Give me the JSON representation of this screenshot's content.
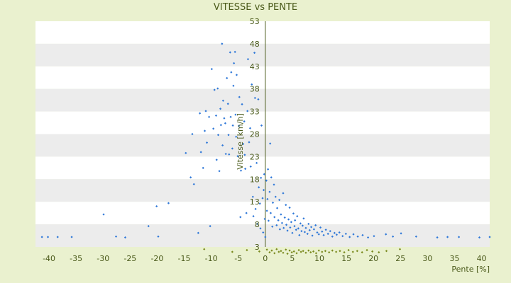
{
  "chart_data": {
    "type": "scatter",
    "title": "VITESSE vs PENTE",
    "xlabel": "Pente [%]",
    "ylabel": "Vitesse [km/h]",
    "xlim": [
      -42.5,
      41.5
    ],
    "ylim": [
      3,
      53
    ],
    "x_ticks": [
      "-40",
      "-35",
      "-30",
      "-25",
      "-20",
      "-15",
      "-10",
      "-5",
      "0",
      "5",
      "10",
      "15",
      "20",
      "25",
      "30",
      "35",
      "40"
    ],
    "y_ticks": [
      "53",
      "48",
      "43",
      "38",
      "33",
      "28",
      "23",
      "18",
      "13",
      "8",
      "3"
    ],
    "grid": true,
    "legend": "none",
    "colors": {
      "background": "#eaf1cf",
      "plot_band_light": "#ffffff",
      "plot_band_dark": "#ececec",
      "series_main": "#2f78d8",
      "series_secondary": "#7a8a1e",
      "text": "#4a5a1a"
    },
    "series": [
      {
        "points": [
          [
            -41.3,
            5.2
          ],
          [
            -40.2,
            5.2
          ],
          [
            -38.4,
            5.2
          ],
          [
            -35.8,
            5.2
          ],
          [
            -29.9,
            10.2
          ],
          [
            -27.6,
            5.3
          ],
          [
            -25.9,
            5.1
          ],
          [
            -21.6,
            7.6
          ],
          [
            -20.1,
            12.0
          ],
          [
            -19.8,
            5.3
          ],
          [
            -17.9,
            12.7
          ],
          [
            -14.7,
            23.8
          ],
          [
            -13.8,
            18.4
          ],
          [
            -13.5,
            28.0
          ],
          [
            -13.2,
            16.9
          ],
          [
            -12.4,
            6.1
          ],
          [
            -12.1,
            32.6
          ],
          [
            -11.9,
            24.0
          ],
          [
            -11.5,
            20.5
          ],
          [
            -11.2,
            28.7
          ],
          [
            -11.0,
            33.1
          ],
          [
            -10.8,
            26.1
          ],
          [
            -10.4,
            31.8
          ],
          [
            -10.2,
            7.6
          ],
          [
            -9.9,
            42.4
          ],
          [
            -9.6,
            29.2
          ],
          [
            -9.4,
            37.8
          ],
          [
            -9.1,
            32.1
          ],
          [
            -9.0,
            22.3
          ],
          [
            -8.8,
            38.1
          ],
          [
            -8.7,
            27.8
          ],
          [
            -8.5,
            19.8
          ],
          [
            -8.3,
            33.6
          ],
          [
            -8.2,
            30.0
          ],
          [
            -8.0,
            48.0
          ],
          [
            -7.9,
            25.5
          ],
          [
            -7.8,
            35.4
          ],
          [
            -7.6,
            31.5
          ],
          [
            -7.4,
            30.4
          ],
          [
            -7.3,
            23.6
          ],
          [
            -7.1,
            40.4
          ],
          [
            -6.9,
            34.7
          ],
          [
            -6.8,
            27.8
          ],
          [
            -6.7,
            23.5
          ],
          [
            -6.5,
            46.1
          ],
          [
            -6.4,
            31.8
          ],
          [
            -6.3,
            41.7
          ],
          [
            -6.1,
            24.8
          ],
          [
            -6.0,
            29.9
          ],
          [
            -5.9,
            38.7
          ],
          [
            -5.8,
            43.7
          ],
          [
            -5.6,
            46.2
          ],
          [
            -5.5,
            32.3
          ],
          [
            -5.4,
            27.4
          ],
          [
            -5.3,
            41.1
          ],
          [
            -5.1,
            23.1
          ],
          [
            -4.9,
            29.8
          ],
          [
            -4.8,
            36.2
          ],
          [
            -4.6,
            9.6
          ],
          [
            -4.5,
            19.9
          ],
          [
            -4.3,
            34.6
          ],
          [
            -4.1,
            25.8
          ],
          [
            -3.9,
            30.8
          ],
          [
            -3.8,
            23.4
          ],
          [
            -3.7,
            20.3
          ],
          [
            -3.5,
            10.5
          ],
          [
            -3.3,
            33.1
          ],
          [
            -3.2,
            44.6
          ],
          [
            -3.0,
            26.2
          ],
          [
            -2.8,
            29.3
          ],
          [
            -2.7,
            20.8
          ],
          [
            -2.5,
            39.0
          ],
          [
            -2.3,
            14.1
          ],
          [
            -2.2,
            9.8
          ],
          [
            -2.0,
            46.0
          ],
          [
            -1.9,
            36.0
          ],
          [
            -1.8,
            11.4
          ],
          [
            -1.6,
            21.6
          ],
          [
            -1.5,
            8.1
          ],
          [
            -1.3,
            35.7
          ],
          [
            -1.2,
            16.2
          ],
          [
            -1.0,
            12.6
          ],
          [
            -0.9,
            7.1
          ],
          [
            -0.8,
            18.3
          ],
          [
            -0.7,
            29.9
          ],
          [
            -0.5,
            13.8
          ],
          [
            -0.4,
            6.2
          ],
          [
            -0.3,
            15.6
          ],
          [
            -0.2,
            19.1
          ],
          [
            -0.1,
            9.2
          ],
          [
            0.0,
            5.2
          ],
          [
            0.2,
            17.7
          ],
          [
            0.3,
            11.0
          ],
          [
            0.4,
            13.6
          ],
          [
            0.5,
            20.2
          ],
          [
            0.6,
            8.8
          ],
          [
            0.8,
            15.2
          ],
          [
            0.9,
            25.9
          ],
          [
            1.0,
            10.5
          ],
          [
            1.1,
            18.4
          ],
          [
            1.3,
            7.5
          ],
          [
            1.4,
            12.8
          ],
          [
            1.6,
            16.8
          ],
          [
            1.7,
            9.6
          ],
          [
            1.9,
            14.1
          ],
          [
            2.1,
            7.8
          ],
          [
            2.2,
            11.6
          ],
          [
            2.4,
            8.9
          ],
          [
            2.6,
            13.4
          ],
          [
            2.7,
            6.9
          ],
          [
            2.9,
            10.2
          ],
          [
            3.1,
            8.3
          ],
          [
            3.3,
            14.9
          ],
          [
            3.4,
            7.2
          ],
          [
            3.6,
            9.5
          ],
          [
            3.8,
            12.3
          ],
          [
            3.9,
            7.9
          ],
          [
            4.1,
            6.6
          ],
          [
            4.3,
            9.1
          ],
          [
            4.5,
            11.7
          ],
          [
            4.6,
            7.3
          ],
          [
            4.8,
            8.5
          ],
          [
            5.0,
            6.1
          ],
          [
            5.2,
            10.4
          ],
          [
            5.4,
            7.6
          ],
          [
            5.5,
            8.9
          ],
          [
            5.7,
            6.8
          ],
          [
            5.9,
            9.8
          ],
          [
            6.1,
            7.1
          ],
          [
            6.3,
            5.6
          ],
          [
            6.5,
            8.2
          ],
          [
            6.7,
            6.5
          ],
          [
            6.9,
            7.7
          ],
          [
            7.1,
            9.3
          ],
          [
            7.3,
            6.3
          ],
          [
            7.5,
            7.2
          ],
          [
            7.8,
            5.9
          ],
          [
            8.0,
            8.1
          ],
          [
            8.2,
            6.7
          ],
          [
            8.5,
            7.4
          ],
          [
            8.7,
            5.5
          ],
          [
            9.0,
            6.9
          ],
          [
            9.3,
            7.8
          ],
          [
            9.6,
            6.2
          ],
          [
            9.9,
            5.8
          ],
          [
            10.2,
            7.3
          ],
          [
            10.5,
            6.4
          ],
          [
            10.8,
            5.6
          ],
          [
            11.2,
            6.8
          ],
          [
            11.6,
            5.9
          ],
          [
            12.0,
            6.5
          ],
          [
            12.4,
            5.3
          ],
          [
            12.8,
            6.1
          ],
          [
            13.2,
            5.7
          ],
          [
            13.7,
            6.2
          ],
          [
            14.3,
            5.4
          ],
          [
            14.9,
            5.9
          ],
          [
            15.6,
            5.2
          ],
          [
            16.3,
            5.8
          ],
          [
            17.1,
            5.3
          ],
          [
            18.0,
            5.6
          ],
          [
            19.0,
            5.1
          ],
          [
            20.1,
            5.4
          ],
          [
            22.3,
            5.8
          ],
          [
            23.6,
            5.3
          ],
          [
            25.1,
            6.0
          ],
          [
            27.9,
            5.3
          ],
          [
            31.8,
            5.1
          ],
          [
            33.7,
            5.2
          ],
          [
            35.8,
            5.2
          ],
          [
            39.6,
            5.1
          ],
          [
            41.5,
            5.2
          ]
        ]
      },
      {
        "points": [
          [
            -11.3,
            2.5
          ],
          [
            -6.1,
            1.9
          ],
          [
            -3.4,
            2.3
          ],
          [
            -1.1,
            2.0
          ],
          [
            0.3,
            2.4
          ],
          [
            0.8,
            1.8
          ],
          [
            1.2,
            2.2
          ],
          [
            1.7,
            1.6
          ],
          [
            2.1,
            2.5
          ],
          [
            2.5,
            1.9
          ],
          [
            2.9,
            2.1
          ],
          [
            3.3,
            1.7
          ],
          [
            3.8,
            2.4
          ],
          [
            4.1,
            1.5
          ],
          [
            4.5,
            2.2
          ],
          [
            4.9,
            1.8
          ],
          [
            5.3,
            2.0
          ],
          [
            5.8,
            1.6
          ],
          [
            6.2,
            2.3
          ],
          [
            6.6,
            1.9
          ],
          [
            7.0,
            2.1
          ],
          [
            7.5,
            1.7
          ],
          [
            8.0,
            2.2
          ],
          [
            8.4,
            1.8
          ],
          [
            8.9,
            2.0
          ],
          [
            9.4,
            1.6
          ],
          [
            9.9,
            2.2
          ],
          [
            10.5,
            1.9
          ],
          [
            11.1,
            2.1
          ],
          [
            11.8,
            1.8
          ],
          [
            12.4,
            2.2
          ],
          [
            13.1,
            1.9
          ],
          [
            13.8,
            2.1
          ],
          [
            14.6,
            1.8
          ],
          [
            15.4,
            2.3
          ],
          [
            16.2,
            1.9
          ],
          [
            17.0,
            2.1
          ],
          [
            17.9,
            1.8
          ],
          [
            18.8,
            2.3
          ],
          [
            19.8,
            2.0
          ],
          [
            21.0,
            1.8
          ],
          [
            22.4,
            2.1
          ],
          [
            24.9,
            2.5
          ]
        ]
      }
    ]
  }
}
